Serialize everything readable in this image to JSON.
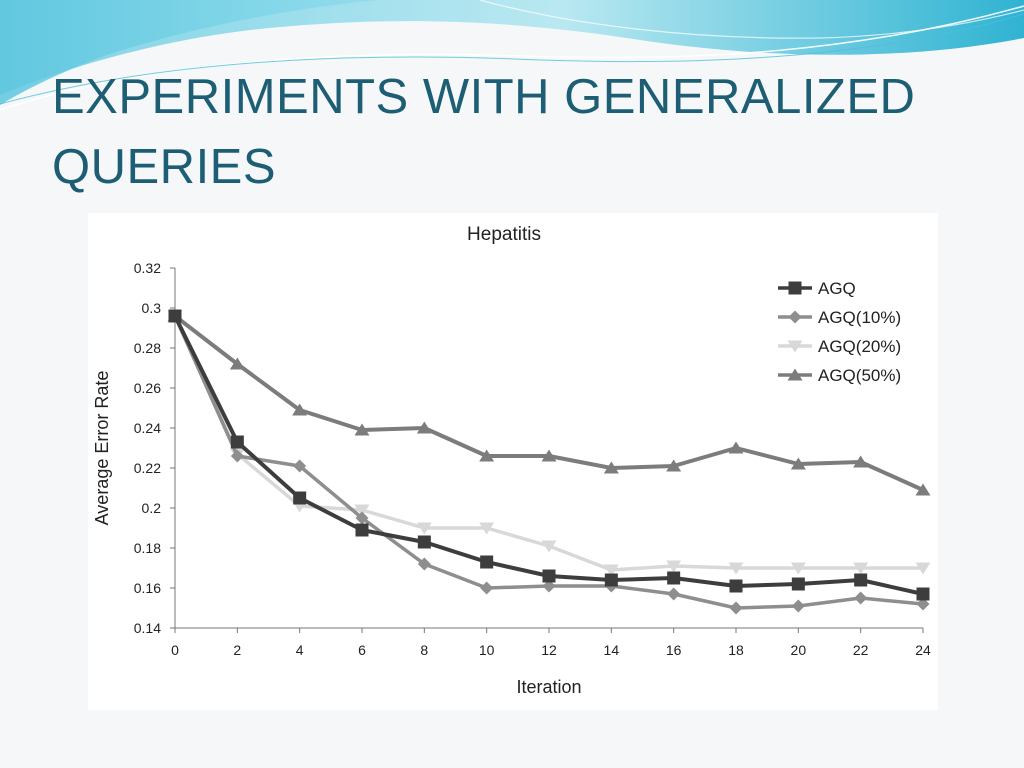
{
  "slide": {
    "title": "EXPERIMENTS WITH GENERALIZED QUERIES"
  },
  "colors": {
    "title": "#1d5e74",
    "AGQ": "#3d3d3d",
    "AGQ(10%)": "#8e8e8e",
    "AGQ(20%)": "#d8d8d8",
    "AGQ(50%)": "#7c7c7c"
  },
  "chart_data": {
    "type": "line",
    "title": "Hepatitis",
    "xlabel": "Iteration",
    "ylabel": "Average Error Rate",
    "xlim": [
      0,
      24
    ],
    "ylim": [
      0.14,
      0.32
    ],
    "x_ticks": [
      "0",
      "2",
      "4",
      "6",
      "8",
      "10",
      "12",
      "14",
      "16",
      "18",
      "20",
      "22",
      "24"
    ],
    "y_ticks": [
      "0.14",
      "0.16",
      "0.18",
      "0.2",
      "0.22",
      "0.24",
      "0.26",
      "0.28",
      "0.3",
      "0.32"
    ],
    "legend_position": "top-right",
    "grid": false,
    "x": [
      0,
      2,
      4,
      6,
      8,
      10,
      12,
      14,
      16,
      18,
      20,
      22,
      24
    ],
    "series": [
      {
        "name": "AGQ",
        "marker": "square",
        "values": [
          0.296,
          0.233,
          0.205,
          0.189,
          0.183,
          0.173,
          0.166,
          0.164,
          0.165,
          0.161,
          0.162,
          0.164,
          0.157
        ]
      },
      {
        "name": "AGQ(10%)",
        "marker": "diamond",
        "values": [
          0.296,
          0.226,
          0.221,
          0.195,
          0.172,
          0.16,
          0.161,
          0.161,
          0.157,
          0.15,
          0.151,
          0.155,
          0.152
        ]
      },
      {
        "name": "AGQ(20%)",
        "marker": "triangle-down",
        "values": [
          0.296,
          0.227,
          0.201,
          0.199,
          0.19,
          0.19,
          0.181,
          0.169,
          0.171,
          0.17,
          0.17,
          0.17,
          0.17
        ]
      },
      {
        "name": "AGQ(50%)",
        "marker": "triangle-up",
        "values": [
          0.296,
          0.272,
          0.249,
          0.239,
          0.24,
          0.226,
          0.226,
          0.22,
          0.221,
          0.23,
          0.222,
          0.223,
          0.209
        ]
      }
    ]
  }
}
